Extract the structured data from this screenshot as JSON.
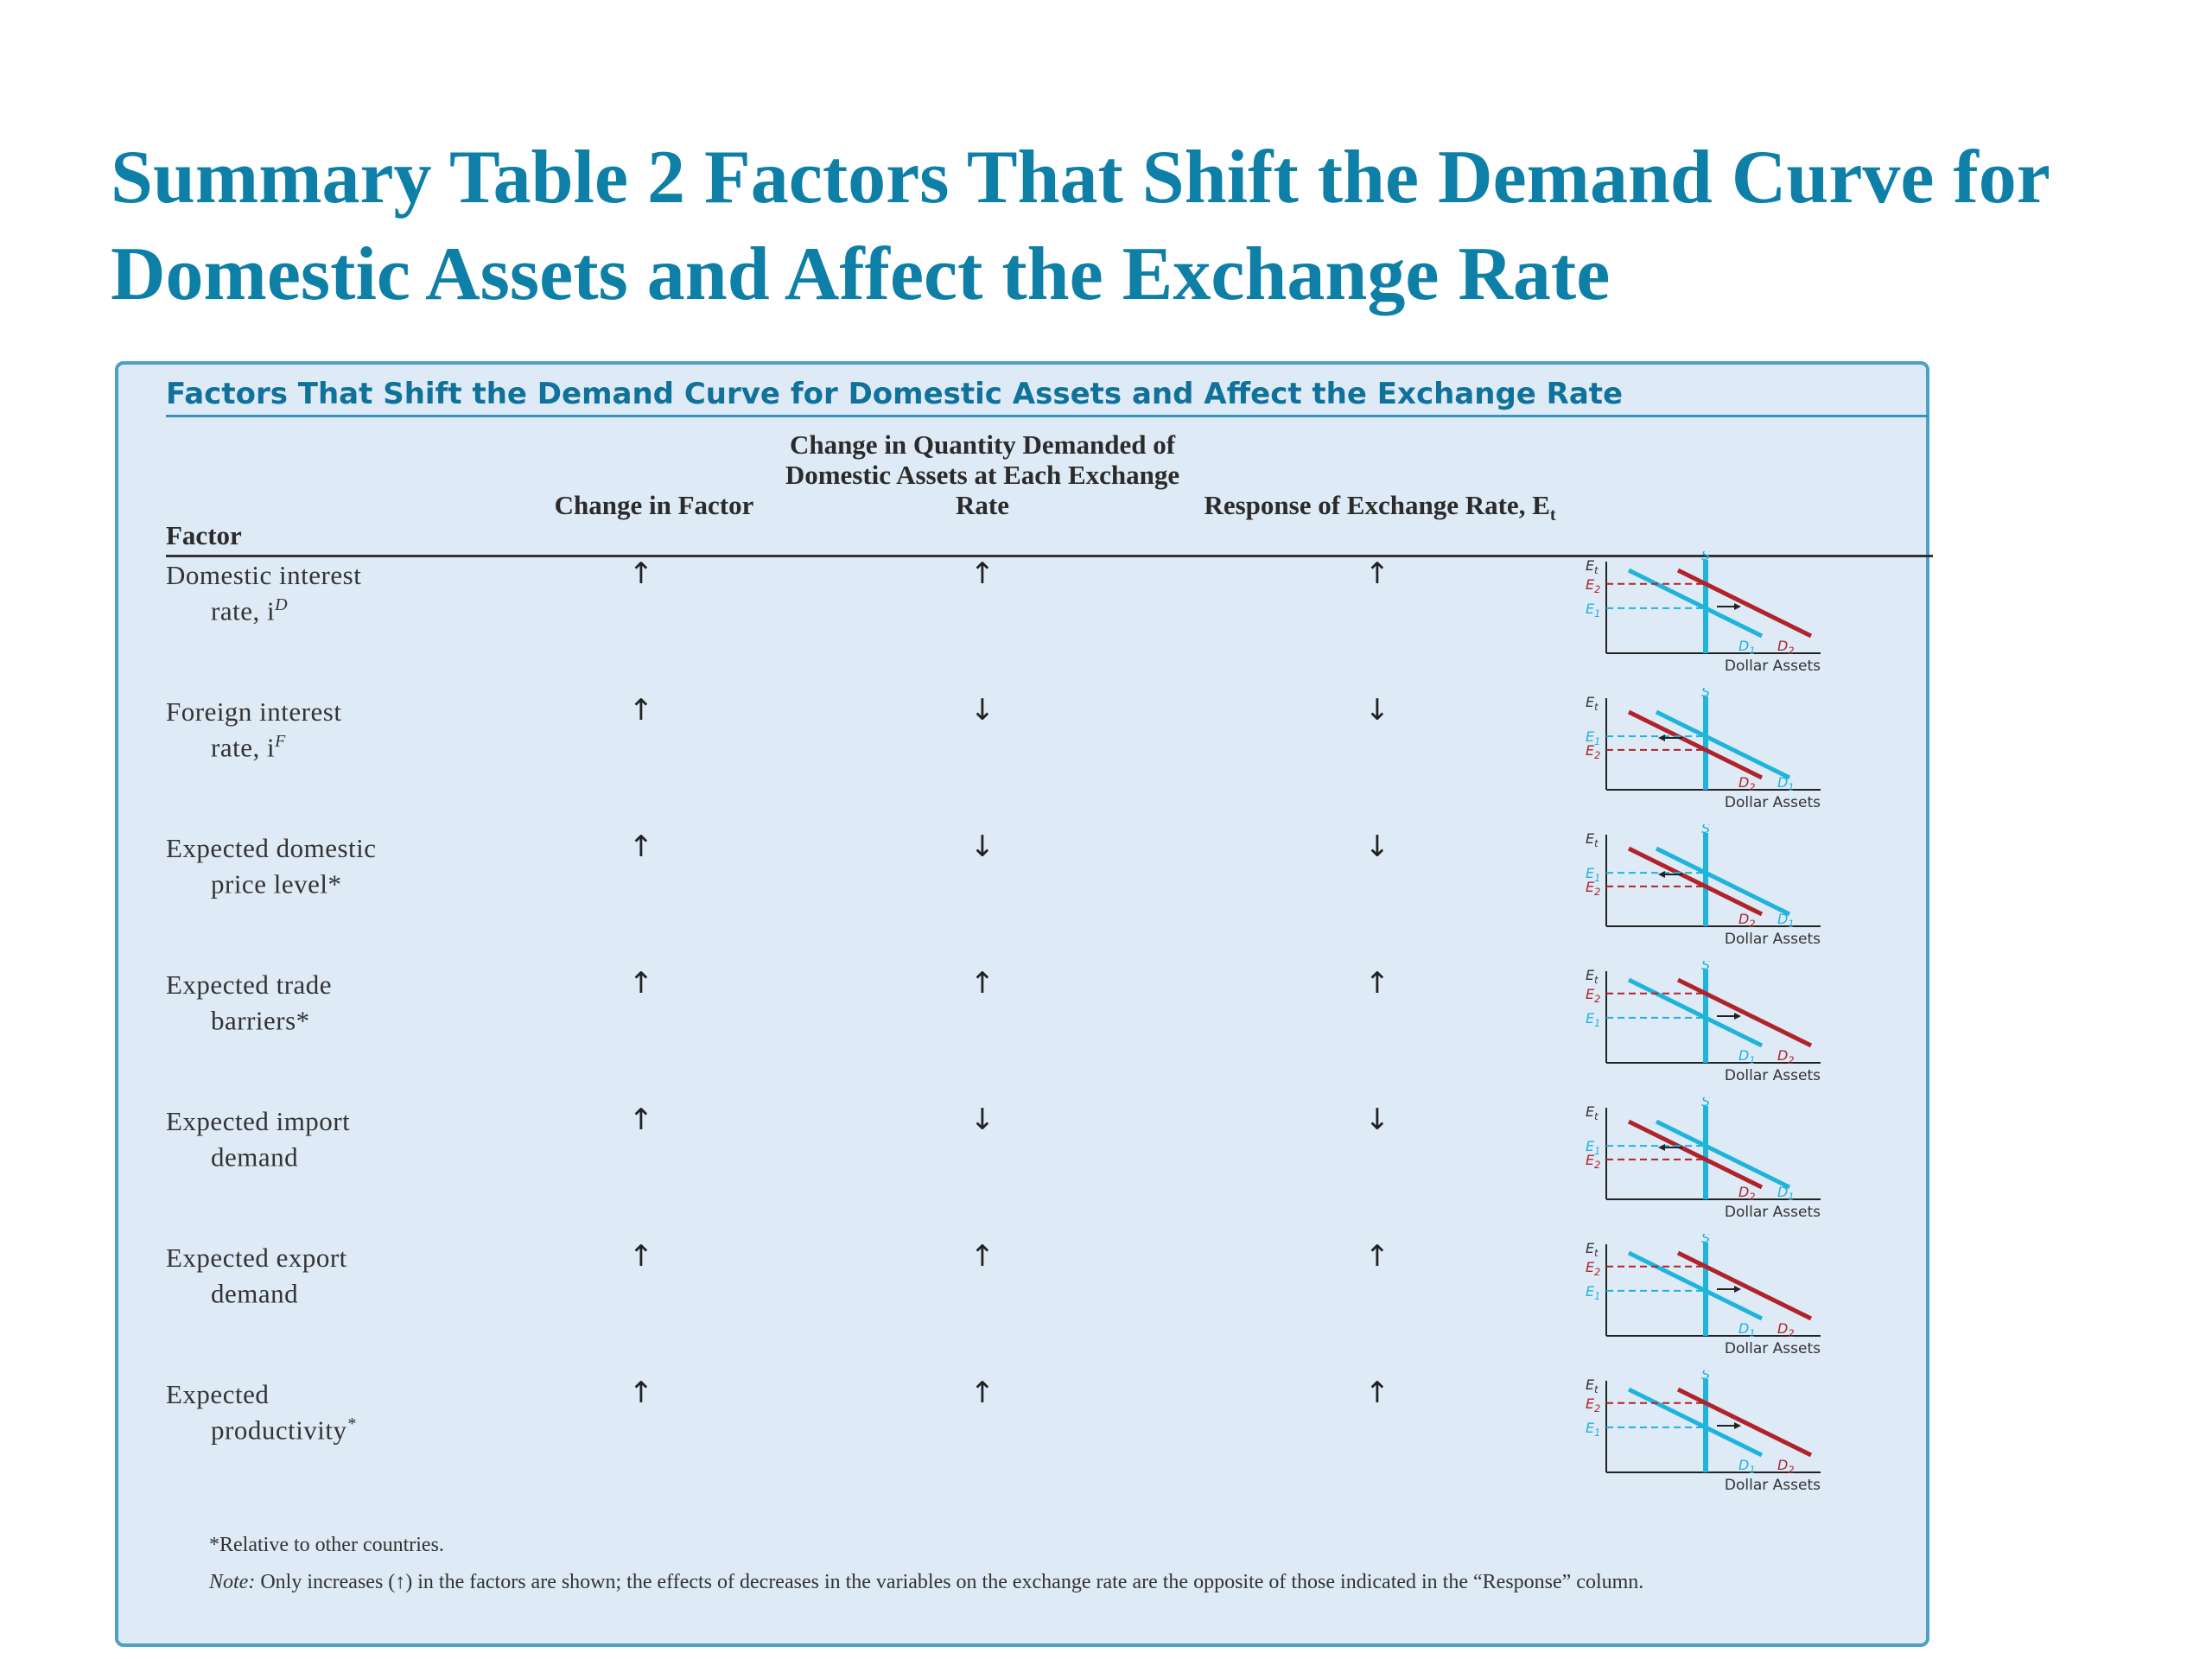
{
  "slide": {
    "title": "Summary Table 2 Factors That Shift the Demand Curve for Domestic Assets and Affect the Exchange Rate"
  },
  "table": {
    "box_title": "Factors That Shift the Demand Curve for Domestic Assets and Affect the Exchange Rate",
    "headers": {
      "factor": "Factor",
      "change_in_factor": "Change in Factor",
      "change_in_quantity": "Change in Quantity Demanded of Domestic Assets at Each Exchange Rate",
      "response": "Response of Exchange Rate, E",
      "response_sub": "t"
    },
    "rows": [
      {
        "line1": "Domestic interest",
        "line2": "rate, i",
        "sup": "D",
        "change": "↑",
        "quantity": "↑",
        "response": "↑",
        "shift": "right"
      },
      {
        "line1": "Foreign interest",
        "line2": "rate, i",
        "sup": "F",
        "change": "↑",
        "quantity": "↓",
        "response": "↓",
        "shift": "left"
      },
      {
        "line1": "Expected domestic",
        "line2": "price level*",
        "sup": "",
        "change": "↑",
        "quantity": "↓",
        "response": "↓",
        "shift": "left"
      },
      {
        "line1": "Expected trade",
        "line2": "barriers*",
        "sup": "",
        "change": "↑",
        "quantity": "↑",
        "response": "↑",
        "shift": "right"
      },
      {
        "line1": "Expected import",
        "line2": "demand",
        "sup": "",
        "change": "↑",
        "quantity": "↓",
        "response": "↓",
        "shift": "left"
      },
      {
        "line1": "Expected export",
        "line2": "demand",
        "sup": "",
        "change": "↑",
        "quantity": "↑",
        "response": "↑",
        "shift": "right"
      },
      {
        "line1": "Expected",
        "line2": "productivity",
        "sup": "*",
        "change": "↑",
        "quantity": "↑",
        "response": "↑",
        "shift": "right"
      }
    ],
    "graph_labels": {
      "axis_y": "E",
      "axis_y_sub": "t",
      "e1": "E",
      "e1_sub": "1",
      "e2": "E",
      "e2_sub": "2",
      "supply": "S",
      "d1": "D",
      "d1_sub": "1",
      "d2": "D",
      "d2_sub": "2",
      "axis_x": "Dollar Assets"
    },
    "footnote_relative": "*Relative to other countries.",
    "note_label": "Note:",
    "note_text": " Only increases (↑) in the factors are shown; the effects of decreases in the variables on the exchange rate are the opposite of those indicated in the “Response” column."
  },
  "colors": {
    "title": "#0e7fa6",
    "box_bg": "#deeaf5",
    "box_border": "#4d9fc4",
    "curve_blue": "#1fb4dc",
    "curve_red": "#b0232a"
  }
}
